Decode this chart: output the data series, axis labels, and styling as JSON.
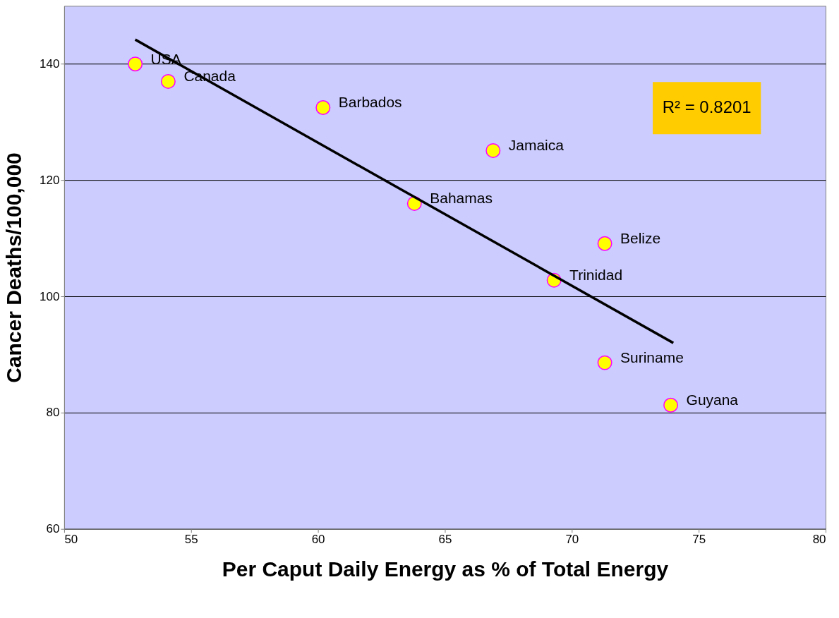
{
  "chart_data": {
    "type": "scatter",
    "xlabel": "Per Caput Daily Energy as % of Total Energy",
    "ylabel": "Cancer Deaths/100,000",
    "xlim": [
      50,
      80
    ],
    "xticks": [
      50,
      55,
      60,
      65,
      70,
      75,
      80
    ],
    "ylim": [
      60,
      150
    ],
    "yticks": [
      60,
      80,
      100,
      120,
      140
    ],
    "grid": "y",
    "series": [
      {
        "color": "#ffff00",
        "marker": "circle",
        "x": [
          52.8,
          54.1,
          60.2,
          66.9,
          63.8,
          71.3,
          69.3,
          71.3,
          73.9
        ],
        "values": [
          140.0,
          137.0,
          132.5,
          125.1,
          116.0,
          109.1,
          102.8,
          88.6,
          81.3
        ]
      },
      {
        "type": "line",
        "marker": "none",
        "color": "#000000",
        "x": [
          52.8,
          74.0
        ],
        "values": [
          144.2,
          92.0
        ]
      }
    ],
    "annotations": [
      {
        "text": "USA",
        "x": 52.8,
        "y": 140.0
      },
      {
        "text": "Canada",
        "x": 54.1,
        "y": 137.0
      },
      {
        "text": "Barbados",
        "x": 60.2,
        "y": 132.5
      },
      {
        "text": "Jamaica",
        "x": 66.9,
        "y": 125.1
      },
      {
        "text": "Bahamas",
        "x": 63.8,
        "y": 116.0
      },
      {
        "text": "Belize",
        "x": 71.3,
        "y": 109.1
      },
      {
        "text": "Trinidad",
        "x": 69.3,
        "y": 102.8
      },
      {
        "text": "Suriname",
        "x": 71.3,
        "y": 88.6
      },
      {
        "text": "Guyana",
        "x": 73.9,
        "y": 81.3
      },
      "R² = 0.8201"
    ]
  }
}
